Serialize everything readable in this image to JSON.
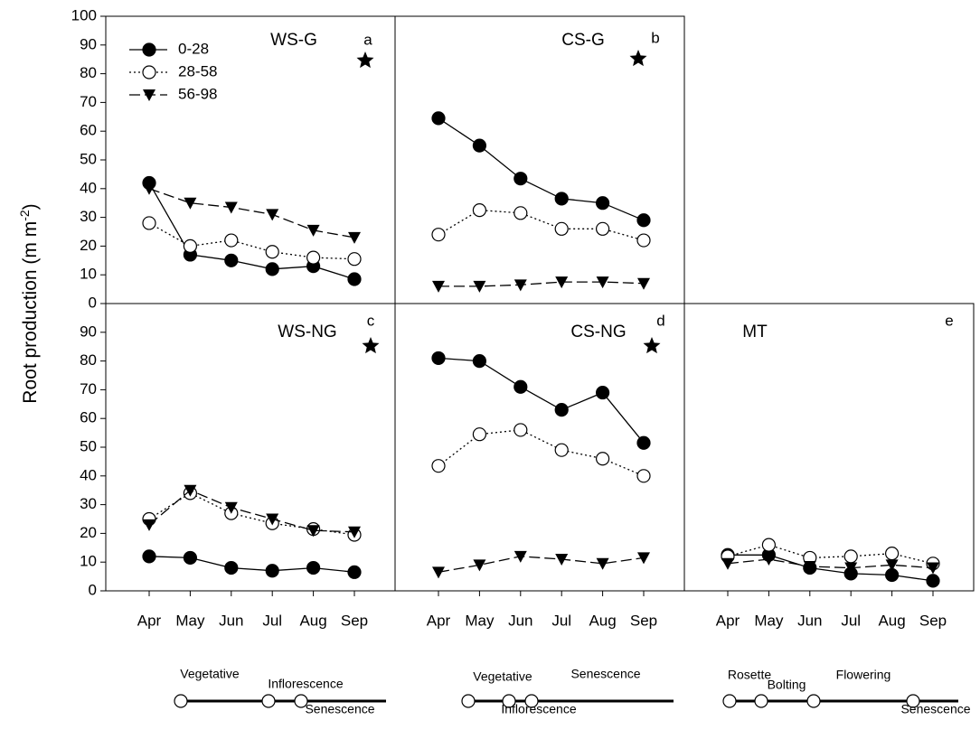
{
  "chart_data": [
    {
      "type": "line",
      "title": "WS-G",
      "letter": "a",
      "star": true,
      "legend": "upper left",
      "ylim": [
        0,
        100
      ],
      "yticks": [
        0,
        10,
        20,
        30,
        40,
        50,
        60,
        70,
        80,
        90,
        100
      ],
      "series": [
        {
          "name": "0-28",
          "color": "#000000",
          "marker": "circle-filled",
          "linestyle": "solid",
          "values": [
            42,
            17,
            15,
            12,
            13,
            8.5
          ]
        },
        {
          "name": "28-58",
          "color": "#000000",
          "marker": "circle-open",
          "linestyle": "dotted",
          "values": [
            28,
            20,
            22,
            18,
            16,
            15.5
          ]
        },
        {
          "name": "56-98",
          "color": "#000000",
          "marker": "triangle-down",
          "linestyle": "dashed",
          "values": [
            40,
            35,
            33.5,
            31,
            25.5,
            23
          ]
        }
      ]
    },
    {
      "type": "line",
      "title": "CS-G",
      "letter": "b",
      "star": true,
      "ylim": [
        0,
        100
      ],
      "series": [
        {
          "color": "#000000",
          "marker": "circle-filled",
          "linestyle": "solid",
          "values": [
            64.5,
            55,
            43.5,
            36.5,
            35,
            29
          ]
        },
        {
          "color": "#000000",
          "marker": "circle-open",
          "linestyle": "dotted",
          "values": [
            24,
            32.5,
            31.5,
            26,
            26,
            22
          ]
        },
        {
          "color": "#000000",
          "marker": "triangle-down",
          "linestyle": "dashed",
          "values": [
            6,
            6,
            6.5,
            7.5,
            7.5,
            7
          ]
        }
      ]
    },
    {
      "type": "line",
      "title": "WS-NG",
      "letter": "c",
      "star": true,
      "categories": [
        "Apr",
        "May",
        "Jun",
        "Jul",
        "Aug",
        "Sep"
      ],
      "ylim": [
        0,
        100
      ],
      "yticks": [
        0,
        10,
        20,
        30,
        40,
        50,
        60,
        70,
        80,
        90
      ],
      "series": [
        {
          "color": "#000000",
          "marker": "circle-filled",
          "linestyle": "solid",
          "values": [
            12,
            11.5,
            8,
            7,
            8,
            6.5
          ]
        },
        {
          "color": "#000000",
          "marker": "circle-open",
          "linestyle": "dotted",
          "values": [
            25,
            34,
            27,
            23.5,
            21.5,
            19.5
          ]
        },
        {
          "color": "#000000",
          "marker": "triangle-down",
          "linestyle": "dashed",
          "values": [
            23,
            35,
            29,
            25,
            21,
            20.5
          ]
        }
      ]
    },
    {
      "type": "line",
      "title": "CS-NG",
      "letter": "d",
      "star": true,
      "categories": [
        "Apr",
        "May",
        "Jun",
        "Jul",
        "Aug",
        "Sep"
      ],
      "ylim": [
        0,
        100
      ],
      "series": [
        {
          "color": "#000000",
          "marker": "circle-filled",
          "linestyle": "solid",
          "values": [
            81,
            80,
            71,
            63,
            69,
            51.5
          ]
        },
        {
          "color": "#000000",
          "marker": "circle-open",
          "linestyle": "dotted",
          "values": [
            43.5,
            54.5,
            56,
            49,
            46,
            40
          ]
        },
        {
          "color": "#000000",
          "marker": "triangle-down",
          "linestyle": "dashed",
          "values": [
            6.5,
            9,
            12,
            11,
            9.5,
            11.5
          ]
        }
      ]
    },
    {
      "type": "line",
      "title": "MT",
      "letter": "e",
      "star": false,
      "categories": [
        "Apr",
        "May",
        "Jun",
        "Jul",
        "Aug",
        "Sep"
      ],
      "ylim": [
        0,
        100
      ],
      "series": [
        {
          "color": "#000000",
          "marker": "circle-filled",
          "linestyle": "solid",
          "values": [
            12.5,
            12.5,
            8,
            6,
            5.5,
            3.5
          ]
        },
        {
          "color": "#000000",
          "marker": "circle-open",
          "linestyle": "dotted",
          "values": [
            12,
            16,
            11.5,
            12,
            13,
            9.5
          ]
        },
        {
          "color": "#000000",
          "marker": "triangle-down",
          "linestyle": "dashed",
          "values": [
            9.5,
            11,
            8.5,
            8,
            9,
            8
          ]
        }
      ]
    }
  ],
  "ylabel": {
    "text": "Root production (m m",
    "sup": "-2",
    "end": ")"
  },
  "phenology": [
    {
      "stages": [
        "Vegetative",
        "Inflorescence",
        "Senescence"
      ]
    },
    {
      "stages": [
        "Vegetative",
        "Senescence",
        "Inflorescence"
      ]
    },
    {
      "stages": [
        "Rosette",
        "Flowering",
        "Bolting",
        "Senescence"
      ]
    }
  ]
}
